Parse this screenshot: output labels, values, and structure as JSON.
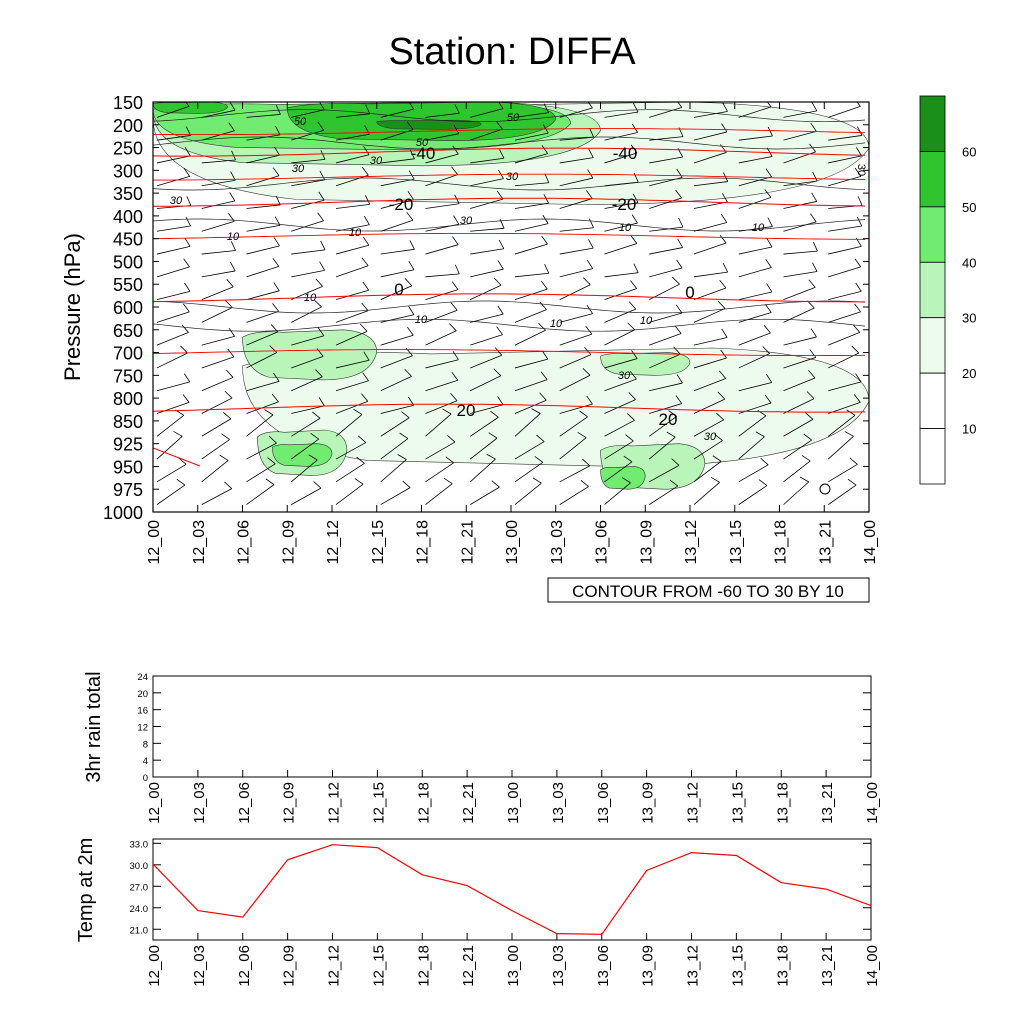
{
  "title": "Station: DIFFA",
  "chart_data": [
    {
      "type": "heatmap",
      "name": "upper-air time-height section",
      "ylabel": "Pressure (hPa)",
      "pressure_levels": [
        150,
        200,
        250,
        300,
        350,
        400,
        450,
        500,
        550,
        600,
        650,
        700,
        750,
        800,
        850,
        925,
        950,
        975,
        1000
      ],
      "time_labels": [
        "12_00",
        "12_03",
        "12_06",
        "12_09",
        "12_12",
        "12_15",
        "12_18",
        "12_21",
        "13_00",
        "13_03",
        "13_06",
        "13_09",
        "13_12",
        "13_15",
        "13_18",
        "13_21",
        "14_00"
      ],
      "contour_info": "CONTOUR FROM -60 TO 30 BY 10",
      "colorbar": {
        "levels": [
          10,
          20,
          30,
          40,
          50,
          60
        ],
        "colors": [
          "#ffffff",
          "#ffffff",
          "#edfbed",
          "#b9f5b9",
          "#71ec71",
          "#2fc52f",
          "#1a8f1a"
        ]
      },
      "fill_regions": [
        {
          "level": 20,
          "color": "#edfbed",
          "bounds": {
            "p_top": 150,
            "p_bottom": 375,
            "t_start": 0,
            "t_end": 48
          }
        },
        {
          "level": 20,
          "color": "#edfbed",
          "bounds": {
            "p_top": 690,
            "p_bottom": 950,
            "t_start": 6,
            "t_end": 48
          }
        },
        {
          "level": 30,
          "color": "#b9f5b9",
          "bounds": {
            "p_top": 150,
            "p_bottom": 290,
            "t_start": 0,
            "t_end": 30
          }
        },
        {
          "level": 30,
          "color": "#b9f5b9",
          "bounds": {
            "p_top": 650,
            "p_bottom": 760,
            "t_start": 6,
            "t_end": 15
          }
        },
        {
          "level": 30,
          "color": "#b9f5b9",
          "bounds": {
            "p_top": 880,
            "p_bottom": 960,
            "t_start": 7,
            "t_end": 13
          }
        },
        {
          "level": 30,
          "color": "#b9f5b9",
          "bounds": {
            "p_top": 700,
            "p_bottom": 750,
            "t_start": 30,
            "t_end": 36
          }
        },
        {
          "level": 30,
          "color": "#b9f5b9",
          "bounds": {
            "p_top": 925,
            "p_bottom": 975,
            "t_start": 30,
            "t_end": 37
          }
        },
        {
          "level": 40,
          "color": "#71ec71",
          "bounds": {
            "p_top": 150,
            "p_bottom": 255,
            "t_start": 0,
            "t_end": 28
          }
        },
        {
          "level": 40,
          "color": "#71ec71",
          "bounds": {
            "p_top": 925,
            "p_bottom": 950,
            "t_start": 8,
            "t_end": 12
          }
        },
        {
          "level": 40,
          "color": "#71ec71",
          "bounds": {
            "p_top": 950,
            "p_bottom": 975,
            "t_start": 30,
            "t_end": 33
          }
        },
        {
          "level": 50,
          "color": "#2fc52f",
          "bounds": {
            "p_top": 150,
            "p_bottom": 235,
            "t_start": 9,
            "t_end": 27
          }
        },
        {
          "level": 50,
          "color": "#2fc52f",
          "bounds": {
            "p_top": 150,
            "p_bottom": 175,
            "t_start": 0,
            "t_end": 5
          }
        },
        {
          "level": 60,
          "color": "#1a8f1a",
          "bounds": {
            "p_top": 190,
            "p_bottom": 210,
            "t_start": 15,
            "t_end": 22
          }
        }
      ],
      "temperature_contours": [
        {
          "value": -40,
          "p": 260
        },
        {
          "value": -20,
          "p": 370
        },
        {
          "value": 0,
          "p": 580
        },
        {
          "value": 20,
          "p": 822
        }
      ],
      "wind_contour_labels": [
        "50",
        "50",
        "50",
        "30",
        "30",
        "30",
        "30",
        "30",
        "10",
        "10",
        "10",
        "10",
        "10",
        "10",
        "10",
        "10",
        "30",
        "30"
      ],
      "temperature_labels": [
        "-40",
        "-40",
        "-20",
        "-20",
        "0",
        "0",
        "20",
        "20"
      ],
      "calm_marker": "circle"
    },
    {
      "type": "line",
      "name": "3hr rain total",
      "ylabel": "3hr rain total",
      "ylim": [
        0,
        24
      ],
      "yticks": [
        0,
        4,
        8,
        12,
        16,
        20,
        24
      ],
      "x": [
        "12_00",
        "12_03",
        "12_06",
        "12_09",
        "12_12",
        "12_15",
        "12_18",
        "12_21",
        "13_00",
        "13_03",
        "13_06",
        "13_09",
        "13_12",
        "13_15",
        "13_18",
        "13_21",
        "14_00"
      ],
      "values": [
        0,
        0,
        0,
        0,
        0,
        0,
        0,
        0,
        0,
        0,
        0,
        0,
        0,
        0,
        0,
        0,
        0
      ]
    },
    {
      "type": "line",
      "name": "Temp at 2m",
      "ylabel": "Temp at 2m",
      "ylim": [
        19.5,
        33.6
      ],
      "yticks": [
        "21.0",
        "24.0",
        "27.0",
        "30.0",
        "33.0"
      ],
      "line_color": "#ff0000",
      "x": [
        "12_00",
        "12_03",
        "12_06",
        "12_09",
        "12_12",
        "12_15",
        "12_18",
        "12_21",
        "13_00",
        "13_03",
        "13_06",
        "13_09",
        "13_12",
        "13_15",
        "13_18",
        "13_21",
        "14_00"
      ],
      "values": [
        30.1,
        23.6,
        22.7,
        30.7,
        32.8,
        32.4,
        28.6,
        27.1,
        23.6,
        20.4,
        20.3,
        29.2,
        31.7,
        31.3,
        27.5,
        26.6,
        24.3
      ]
    }
  ]
}
